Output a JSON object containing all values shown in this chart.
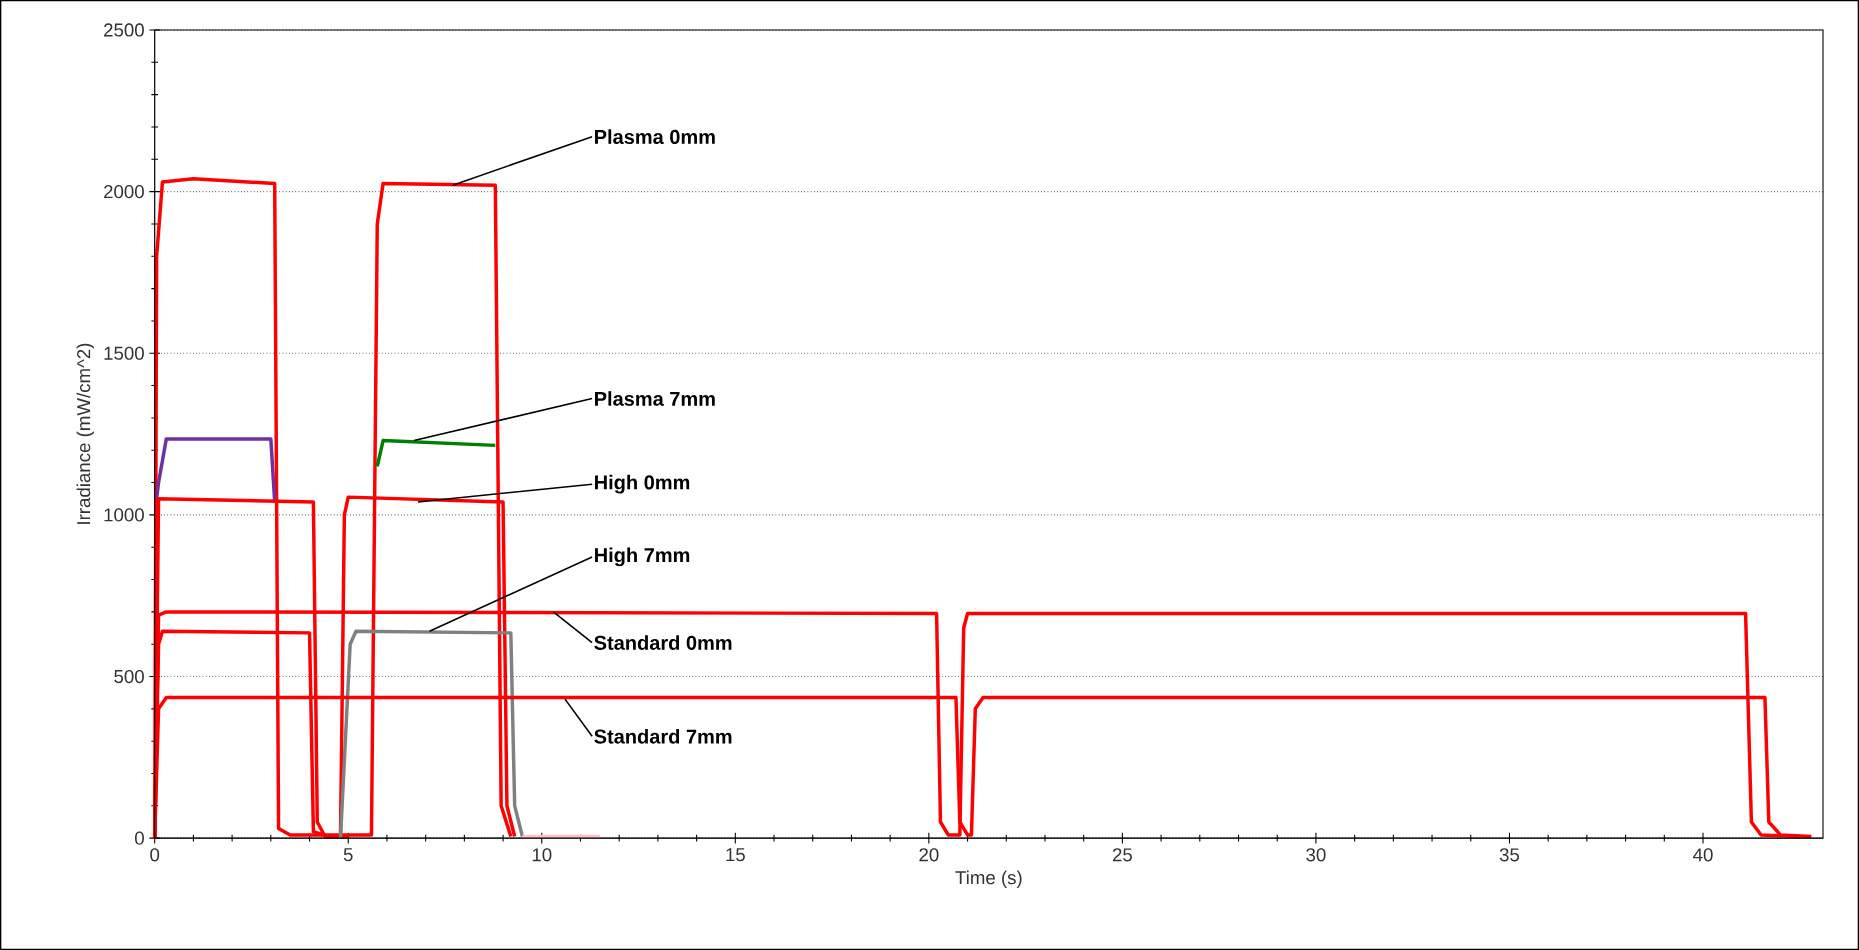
{
  "chart_data": {
    "type": "line",
    "xlabel": "Time (s)",
    "ylabel": "Irradiance (mW/cm^2)",
    "xlim": [
      0,
      43.1
    ],
    "ylim": [
      0,
      2500
    ],
    "xticks": [
      0,
      5,
      10,
      15,
      20,
      25,
      30,
      35,
      40
    ],
    "yticks": [
      0,
      500,
      1000,
      1500,
      2000,
      2500
    ],
    "grid": "y",
    "series": [
      {
        "color": "#ff0000",
        "x": [
          0,
          0.05,
          0.2,
          1,
          3.1,
          3.2,
          3.5,
          5.6,
          5.75,
          5.9,
          8.8,
          8.95,
          9.2
        ],
        "values": [
          0,
          1800,
          2030,
          2040,
          2025,
          30,
          10,
          10,
          1900,
          2025,
          2020,
          100,
          5
        ]
      },
      {
        "color": "#7030a0",
        "x": [
          0.05,
          0.1,
          0.3,
          3.0,
          3.1
        ],
        "values": [
          1050,
          1100,
          1235,
          1235,
          1040
        ]
      },
      {
        "color": "#008000",
        "x": [
          5.75,
          5.9,
          8.8
        ],
        "values": [
          1150,
          1230,
          1215
        ]
      },
      {
        "color": "#ff0000",
        "x": [
          0,
          0.1,
          4.1,
          4.2,
          4.4,
          4.8,
          4.9,
          5.0,
          9.0,
          9.1,
          9.3
        ],
        "values": [
          0,
          1050,
          1040,
          50,
          5,
          5,
          1000,
          1055,
          1040,
          100,
          5
        ]
      },
      {
        "color": "#ff0000",
        "x": [
          0,
          0.1,
          0.2,
          4.0,
          4.1,
          4.5,
          5.0
        ],
        "values": [
          0,
          600,
          640,
          635,
          20,
          5,
          5
        ]
      },
      {
        "color": "#808080",
        "x": [
          4.8,
          5.05,
          5.2,
          9.2,
          9.3,
          9.5
        ],
        "values": [
          0,
          600,
          640,
          635,
          100,
          5
        ]
      },
      {
        "color": "#ffc0cb",
        "x": [
          9.5,
          11.5
        ],
        "values": [
          5,
          5
        ]
      },
      {
        "color": "#ff0000",
        "x": [
          0,
          0.1,
          0.3,
          20.2,
          20.3,
          20.5,
          20.8,
          20.9,
          21.0,
          41.1,
          41.25,
          41.5,
          42.5
        ],
        "values": [
          0,
          690,
          700,
          695,
          50,
          10,
          10,
          650,
          695,
          695,
          50,
          10,
          5
        ]
      },
      {
        "color": "#ff0000",
        "x": [
          0,
          0.1,
          0.3,
          20.7,
          20.8,
          21.0,
          21.1,
          21.2,
          21.4,
          41.6,
          41.7,
          42.0,
          42.8
        ],
        "values": [
          0,
          400,
          435,
          435,
          50,
          10,
          10,
          400,
          435,
          435,
          50,
          10,
          5
        ]
      }
    ],
    "annotations": [
      {
        "text": "Plasma 0mm",
        "x": 7.7,
        "y": 2020
      },
      {
        "text": "Plasma 7mm",
        "x": 6.7,
        "y": 1230
      },
      {
        "text": "High 0mm",
        "x": 6.8,
        "y": 1040
      },
      {
        "text": "High 7mm",
        "x": 7.1,
        "y": 640
      },
      {
        "text": "Standard 0mm",
        "x": 10.3,
        "y": 700
      },
      {
        "text": "Standard 7mm",
        "x": 10.6,
        "y": 430
      }
    ]
  }
}
